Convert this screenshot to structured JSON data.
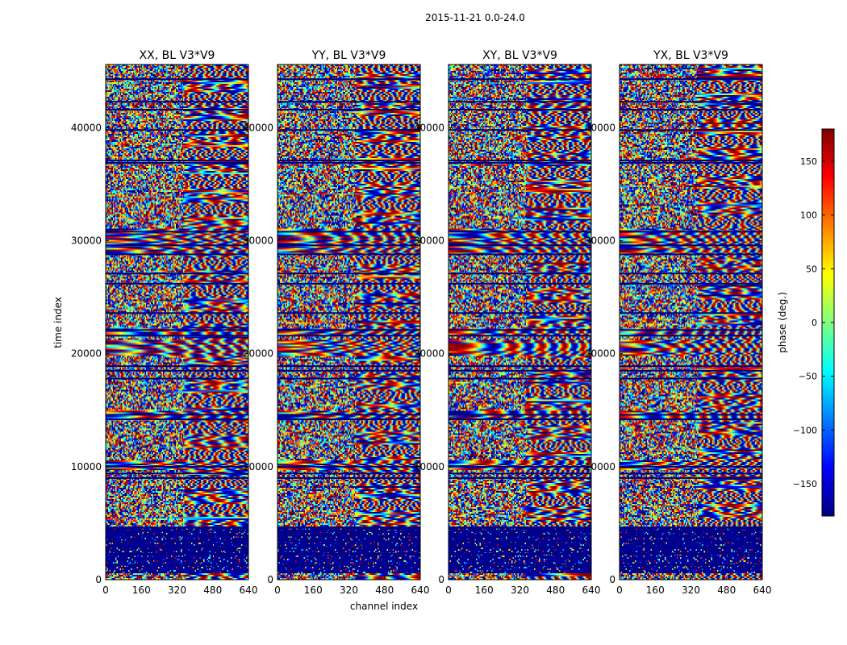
{
  "suptitle": "2015-11-21 0.0-24.0",
  "chart_data": {
    "type": "heatmap",
    "xlabel": "channel index",
    "ylabel": "time index",
    "xlim": [
      0,
      640
    ],
    "ylim": [
      0,
      45600
    ],
    "xticks": [
      0,
      160,
      320,
      480,
      640
    ],
    "yticks": [
      0,
      10000,
      20000,
      30000,
      40000
    ],
    "value_range": [
      -180,
      180
    ],
    "colormap": "jet",
    "colorbar": {
      "label": "phase (deg.)",
      "ticks": [
        150,
        100,
        50,
        0,
        -50,
        -100,
        -150
      ],
      "tick_labels": [
        "150",
        "100",
        "50",
        "0",
        "−50",
        "−100",
        "−150"
      ],
      "range": [
        -180,
        180
      ]
    },
    "panels": [
      {
        "title": "XX, BL V3*V9",
        "pol": "XX"
      },
      {
        "title": "YY, BL V3*V9",
        "pol": "YY"
      },
      {
        "title": "XY, BL V3*V9",
        "pol": "XY"
      },
      {
        "title": "YX, BL V3*V9",
        "pol": "YX"
      }
    ],
    "gap_rows_time_index": [
      1300,
      2300,
      2900,
      3400,
      3900,
      4300,
      4600,
      9000,
      9400,
      10000,
      14200,
      14600,
      17800,
      18500,
      18900,
      21600,
      22100,
      23600,
      26200,
      27100,
      28800,
      29600,
      30800,
      36900,
      37100,
      39800,
      41600,
      42300,
      44300
    ],
    "dark_band_time_index": [
      [
        500,
        4700
      ]
    ],
    "coherent_bands_time_index": [
      [
        9700,
        10500
      ],
      [
        14200,
        14900
      ],
      [
        19800,
        21200
      ],
      [
        28800,
        31000
      ],
      [
        21700,
        22200
      ]
    ]
  }
}
